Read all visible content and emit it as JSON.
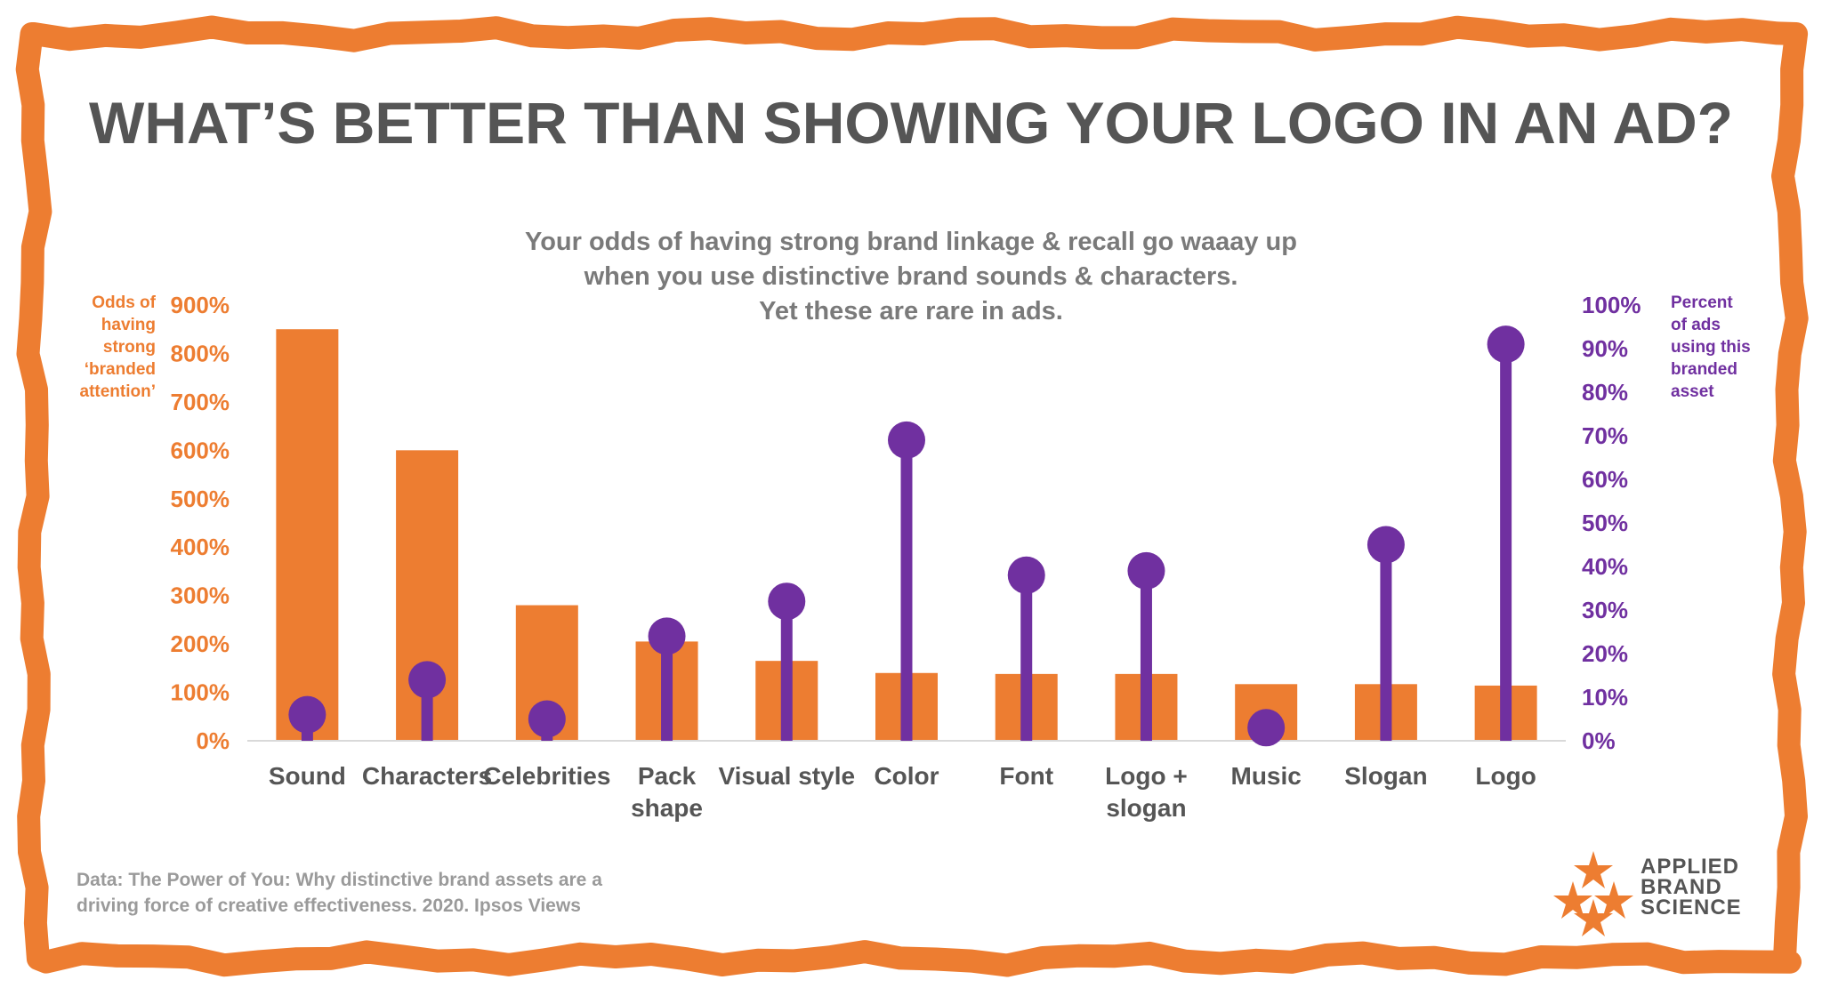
{
  "title": "WHAT’S BETTER THAN SHOWING YOUR LOGO IN AN AD?",
  "subtitle_lines": [
    "Your odds of having strong brand linkage & recall go waaay up",
    "when you use distinctive brand sounds & characters.",
    "Yet these are rare in ads."
  ],
  "left_axis_label_lines": [
    "Odds of",
    "having",
    "strong",
    "‘branded",
    "attention’"
  ],
  "right_axis_label_lines": [
    "Percent",
    "of ads",
    "using this",
    "branded",
    "asset"
  ],
  "source_lines": [
    "Data: The Power of You: Why distinctive brand assets are a",
    "driving force of creative effectiveness. 2020. Ipsos Views"
  ],
  "brand": {
    "lines": [
      "APPLIED",
      "BRAND",
      "SCIENCE"
    ],
    "logo_icon": "star-cluster-icon"
  },
  "colors": {
    "orange": "#ED7D31",
    "purple": "#7030A0",
    "title_gray": "#555555",
    "frame": "#ED7D31"
  },
  "chart_data": {
    "type": "bar",
    "categories": [
      [
        "Sound"
      ],
      [
        "Characters"
      ],
      [
        "Celebrities"
      ],
      [
        "Pack",
        "shape"
      ],
      [
        "Visual style"
      ],
      [
        "Color"
      ],
      [
        "Font"
      ],
      [
        "Logo +",
        "slogan"
      ],
      [
        "Music"
      ],
      [
        "Slogan"
      ],
      [
        "Logo"
      ]
    ],
    "series": [
      {
        "axis": "left",
        "type": "bar",
        "values": [
          850,
          600,
          280,
          205,
          165,
          140,
          138,
          138,
          117,
          117,
          114
        ]
      },
      {
        "axis": "right",
        "type": "lollipop",
        "values": [
          6,
          14,
          5,
          24,
          32,
          69,
          38,
          39,
          3,
          45,
          91
        ]
      }
    ],
    "left_axis": {
      "range": [
        0,
        900
      ],
      "ticks": [
        "0%",
        "100%",
        "200%",
        "300%",
        "400%",
        "500%",
        "600%",
        "700%",
        "800%",
        "900%"
      ]
    },
    "right_axis": {
      "range": [
        0,
        100
      ],
      "ticks": [
        "0%",
        "10%",
        "20%",
        "30%",
        "40%",
        "50%",
        "60%",
        "70%",
        "80%",
        "90%",
        "100%"
      ]
    },
    "grid": false,
    "legend": "none"
  }
}
